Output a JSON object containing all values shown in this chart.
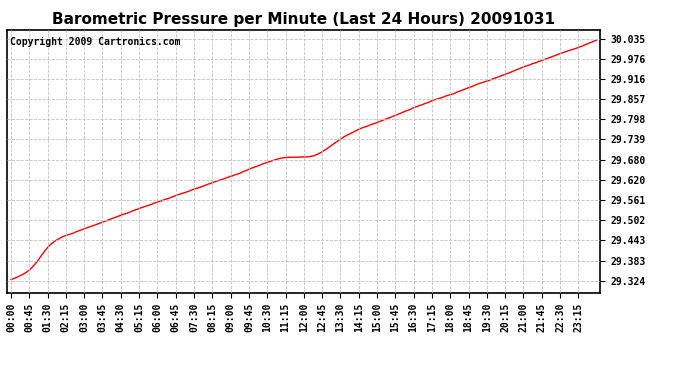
{
  "title": "Barometric Pressure per Minute (Last 24 Hours) 20091031",
  "copyright": "Copyright 2009 Cartronics.com",
  "line_color": "#ff0000",
  "background_color": "#ffffff",
  "plot_bg_color": "#ffffff",
  "grid_color": "#c0c0c0",
  "yticks": [
    29.324,
    29.383,
    29.443,
    29.502,
    29.561,
    29.62,
    29.68,
    29.739,
    29.798,
    29.857,
    29.916,
    29.976,
    30.035
  ],
  "xtick_labels": [
    "00:00",
    "00:45",
    "01:30",
    "02:15",
    "03:00",
    "03:45",
    "04:30",
    "05:15",
    "06:00",
    "06:45",
    "07:30",
    "08:15",
    "09:00",
    "09:45",
    "10:30",
    "11:15",
    "12:00",
    "12:45",
    "13:30",
    "14:15",
    "15:00",
    "15:45",
    "16:30",
    "17:15",
    "18:00",
    "18:45",
    "19:30",
    "20:15",
    "21:00",
    "21:45",
    "22:30",
    "23:15"
  ],
  "ylim": [
    29.29,
    30.06
  ],
  "title_fontsize": 11,
  "tick_fontsize": 7,
  "copyright_fontsize": 7,
  "line_width": 1.0
}
